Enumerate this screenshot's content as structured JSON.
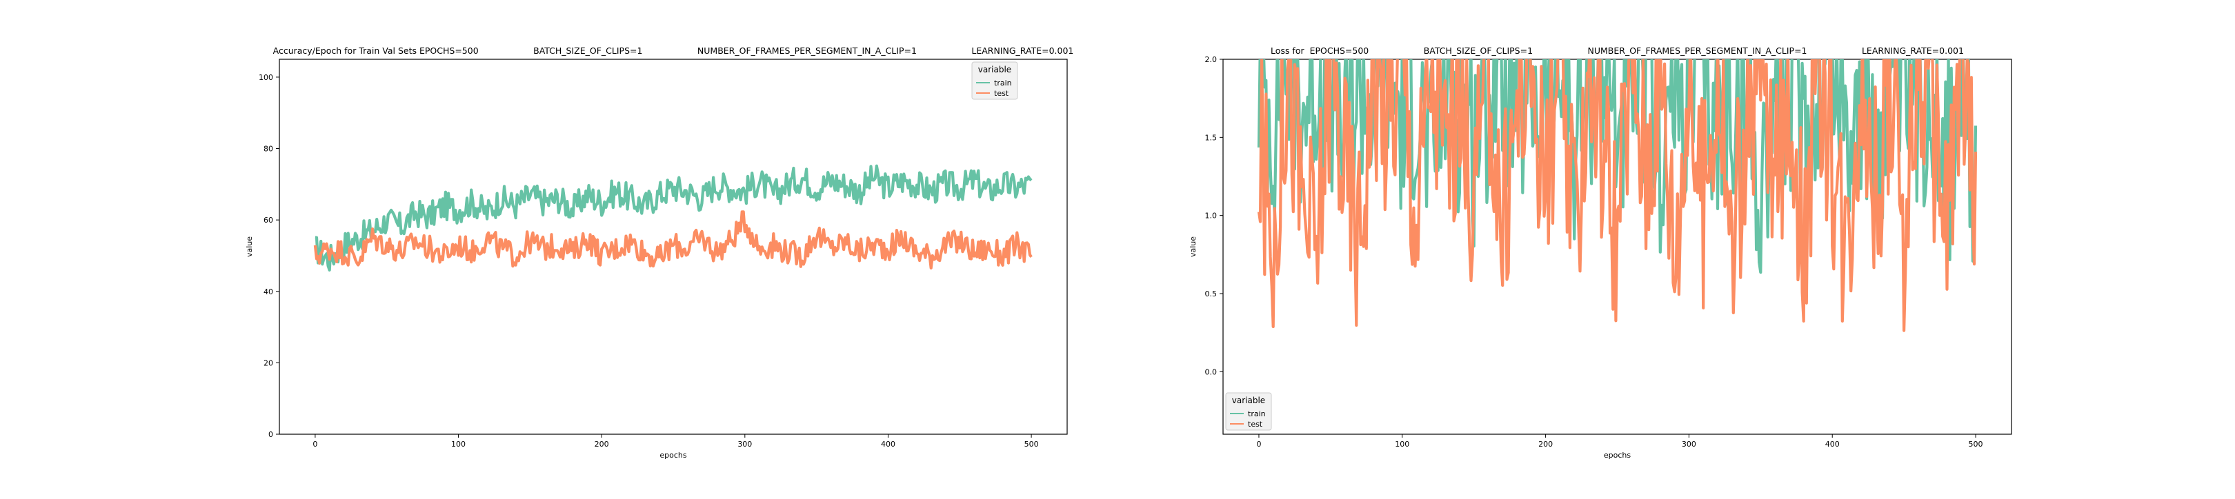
{
  "chart_data": [
    {
      "type": "line",
      "title": "Accuracy/Epoch for Train Val Sets EPOCHS=500                    BATCH_SIZE_OF_CLIPS=1                    NUMBER_OF_FRAMES_PER_SEGMENT_IN_A_CLIP=1                    LEARNING_RATE=0.001",
      "xlabel": "epochs",
      "ylabel": "value",
      "xlim": [
        -25,
        525
      ],
      "ylim": [
        0,
        105
      ],
      "xticks": [
        "0",
        "100",
        "200",
        "300",
        "400",
        "500"
      ],
      "yticks": [
        "0",
        "20",
        "40",
        "60",
        "80",
        "100"
      ],
      "grid": false,
      "legend": {
        "title": "variable",
        "position": "top-right",
        "entries": [
          "train",
          "test"
        ]
      },
      "series": [
        {
          "name": "train",
          "color": "#66c2a5",
          "x": [
            0,
            10,
            20,
            30,
            40,
            50,
            60,
            70,
            80,
            90,
            100,
            110,
            120,
            130,
            140,
            150,
            160,
            170,
            180,
            190,
            200,
            210,
            220,
            230,
            240,
            250,
            260,
            270,
            280,
            290,
            300,
            310,
            320,
            330,
            340,
            350,
            360,
            370,
            380,
            390,
            400,
            410,
            420,
            430,
            440,
            450,
            460,
            470,
            480,
            490,
            500
          ],
          "values": [
            52,
            49,
            53,
            55,
            57,
            60,
            58,
            62,
            61,
            64,
            63,
            65,
            62,
            66,
            64,
            67,
            65,
            66,
            63,
            67,
            65,
            68,
            66,
            64,
            67,
            69,
            68,
            66,
            70,
            69,
            68,
            71,
            67,
            70,
            72,
            69,
            71,
            70,
            68,
            72,
            69,
            71,
            70,
            68,
            70,
            69,
            71,
            68,
            70,
            69,
            70
          ]
        },
        {
          "name": "test",
          "color": "#fc8d62",
          "x": [
            0,
            10,
            20,
            30,
            40,
            50,
            60,
            70,
            80,
            90,
            100,
            110,
            120,
            130,
            140,
            150,
            160,
            170,
            180,
            190,
            200,
            210,
            220,
            230,
            240,
            250,
            260,
            270,
            280,
            290,
            300,
            310,
            320,
            330,
            340,
            350,
            360,
            370,
            380,
            390,
            400,
            410,
            420,
            430,
            440,
            450,
            460,
            470,
            480,
            490,
            500
          ],
          "values": [
            50,
            52,
            51,
            49,
            55,
            53,
            51,
            54,
            52,
            50,
            53,
            51,
            55,
            52,
            50,
            54,
            52,
            53,
            51,
            55,
            50,
            52,
            54,
            51,
            49,
            53,
            52,
            55,
            51,
            54,
            60,
            52,
            53,
            51,
            50,
            56,
            52,
            54,
            51,
            53,
            52,
            55,
            51,
            50,
            53,
            54,
            51,
            52,
            50,
            53,
            50
          ]
        }
      ]
    },
    {
      "type": "line",
      "title": "Loss for  EPOCHS=500                    BATCH_SIZE_OF_CLIPS=1                    NUMBER_OF_FRAMES_PER_SEGMENT_IN_A_CLIP=1                    LEARNING_RATE=0.001",
      "xlabel": "epochs",
      "ylabel": "value",
      "xlim": [
        -25,
        525
      ],
      "ylim": [
        -0.4,
        2.0
      ],
      "xticks": [
        "0",
        "100",
        "200",
        "300",
        "400",
        "500"
      ],
      "yticks": [
        "0.0",
        "0.5",
        "1.0",
        "1.5",
        "2.0"
      ],
      "grid": false,
      "legend": {
        "title": "variable",
        "position": "bottom-left",
        "entries": [
          "train",
          "test"
        ]
      },
      "series": [
        {
          "name": "train",
          "color": "#66c2a5",
          "x": [
            0,
            10,
            20,
            30,
            40,
            50,
            60,
            70,
            80,
            90,
            100,
            110,
            120,
            130,
            140,
            150,
            160,
            170,
            180,
            190,
            200,
            210,
            220,
            230,
            240,
            250,
            260,
            270,
            280,
            290,
            300,
            310,
            320,
            330,
            340,
            350,
            360,
            370,
            380,
            390,
            400,
            410,
            420,
            430,
            440,
            450,
            460,
            470,
            480,
            490,
            500
          ],
          "values": [
            1.9,
            1.6,
            2.0,
            1.7,
            1.9,
            1.8,
            1.5,
            1.9,
            1.7,
            2.0,
            1.6,
            1.8,
            1.3,
            1.9,
            1.7,
            1.5,
            1.8,
            2.0,
            1.6,
            1.8,
            1.7,
            1.9,
            1.5,
            1.8,
            2.0,
            1.6,
            1.7,
            1.9,
            1.4,
            1.8,
            1.7,
            2.0,
            1.5,
            1.8,
            1.6,
            1.2,
            1.9,
            1.7,
            1.5,
            1.8,
            2.0,
            1.6,
            1.7,
            1.4,
            1.9,
            1.8,
            1.6,
            1.9,
            1.3,
            1.8,
            1.0
          ]
        },
        {
          "name": "test",
          "color": "#fc8d62",
          "x": [
            0,
            10,
            20,
            30,
            40,
            50,
            60,
            70,
            80,
            90,
            100,
            110,
            120,
            130,
            140,
            150,
            160,
            170,
            180,
            190,
            200,
            210,
            220,
            230,
            240,
            250,
            260,
            270,
            280,
            290,
            300,
            310,
            320,
            330,
            340,
            350,
            360,
            370,
            380,
            390,
            400,
            410,
            420,
            430,
            440,
            450,
            460,
            470,
            480,
            490,
            500
          ],
          "values": [
            1.45,
            0.78,
            2.0,
            1.1,
            0.75,
            2.0,
            1.3,
            0.85,
            2.0,
            1.6,
            2.0,
            0.95,
            2.0,
            1.4,
            1.8,
            1.1,
            2.0,
            0.9,
            1.7,
            2.0,
            1.2,
            1.9,
            0.8,
            2.0,
            1.5,
            0.9,
            2.0,
            1.3,
            2.0,
            0.75,
            1.8,
            1.0,
            2.0,
            0.7,
            1.6,
            2.0,
            1.1,
            1.9,
            0.85,
            2.0,
            1.4,
            0.8,
            2.0,
            1.2,
            1.8,
            0.95,
            2.0,
            1.5,
            0.9,
            2.0,
            1.1
          ]
        }
      ]
    }
  ]
}
